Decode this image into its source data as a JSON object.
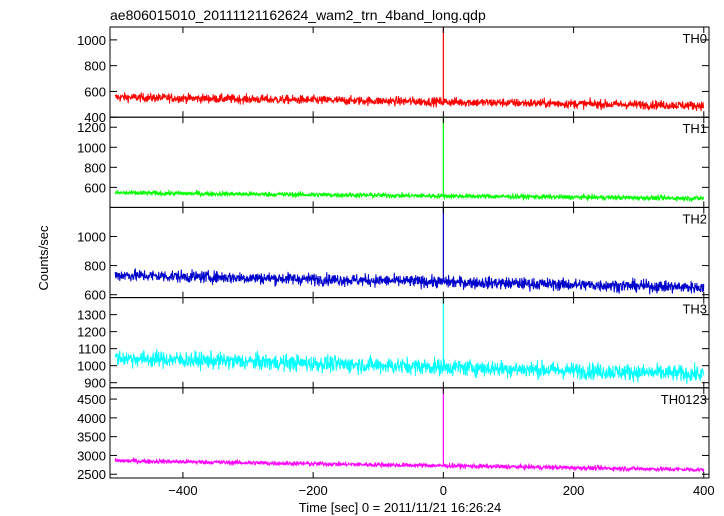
{
  "chart_data": {
    "type": "line",
    "title": "ae806015010_20111121162624_wam2_trn_4band_long.qdp",
    "xlabel": "Time [sec] 0 = 2011/11/21 16:26:24",
    "ylabel": "Counts/sec",
    "xlim": [
      -512,
      408
    ],
    "x_ticks": [
      -400,
      -200,
      0,
      200,
      400
    ],
    "grid": false,
    "panels": [
      {
        "name": "TH0",
        "color": "#ff0000",
        "ylim": [
          400,
          1100
        ],
        "y_ticks": [
          400,
          600,
          800,
          1000
        ],
        "baseline_start": 555,
        "baseline_end": 490,
        "noise": 25,
        "spike_top": 1100,
        "spike_x": 0
      },
      {
        "name": "TH1",
        "color": "#00ff00",
        "ylim": [
          400,
          1300
        ],
        "y_ticks": [
          600,
          800,
          1000,
          1200
        ],
        "baseline_start": 545,
        "baseline_end": 490,
        "noise": 18,
        "spike_top": 1300,
        "spike_x": 0
      },
      {
        "name": "TH2",
        "color": "#0000cc",
        "ylim": [
          580,
          1200
        ],
        "y_ticks": [
          600,
          800,
          1000
        ],
        "baseline_start": 735,
        "baseline_end": 650,
        "noise": 30,
        "spike_top": 1200,
        "spike_x": 0
      },
      {
        "name": "TH3",
        "color": "#00ffff",
        "ylim": [
          870,
          1400
        ],
        "y_ticks": [
          900,
          1000,
          1100,
          1200,
          1300
        ],
        "baseline_start": 1045,
        "baseline_end": 950,
        "noise": 35,
        "spike_top": 1400,
        "spike_x": 0
      },
      {
        "name": "TH0123",
        "color": "#ff00ff",
        "ylim": [
          2400,
          4800
        ],
        "y_ticks": [
          2500,
          3000,
          3500,
          4000,
          4500
        ],
        "baseline_start": 2860,
        "baseline_end": 2620,
        "noise": 45,
        "spike_top": 4800,
        "spike_x": 0
      }
    ]
  }
}
